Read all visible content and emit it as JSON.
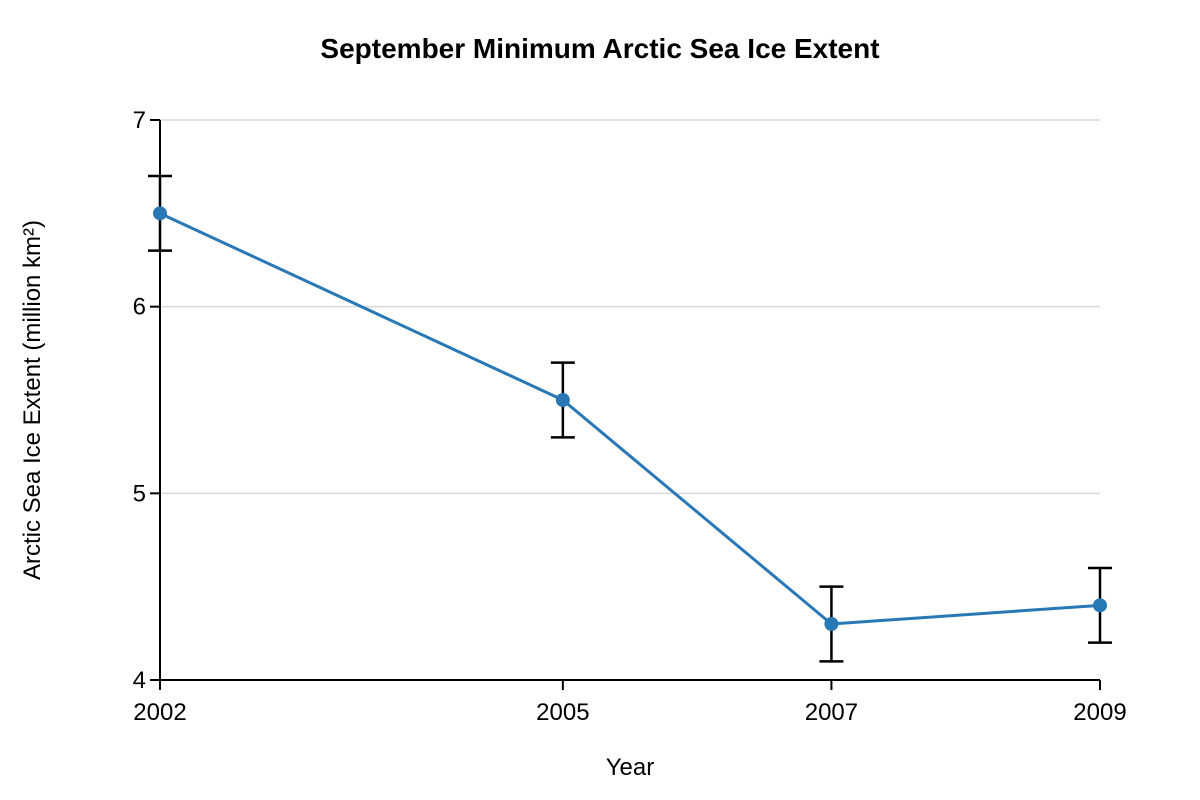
{
  "chart_data": {
    "type": "line",
    "title": "September Minimum Arctic Sea Ice Extent",
    "xlabel": "Year",
    "ylabel": "Arctic Sea Ice Extent (million km²)",
    "x": [
      2002,
      2005,
      2007,
      2009
    ],
    "xlim": [
      2002,
      2009
    ],
    "ylim": [
      4,
      7
    ],
    "yticks": [
      4,
      5,
      6,
      7
    ],
    "grid": true,
    "series": [
      {
        "values": [
          6.5,
          5.5,
          4.3,
          4.4
        ],
        "error": [
          0.2,
          0.2,
          0.2,
          0.2
        ],
        "color": "#2878b5"
      }
    ]
  }
}
